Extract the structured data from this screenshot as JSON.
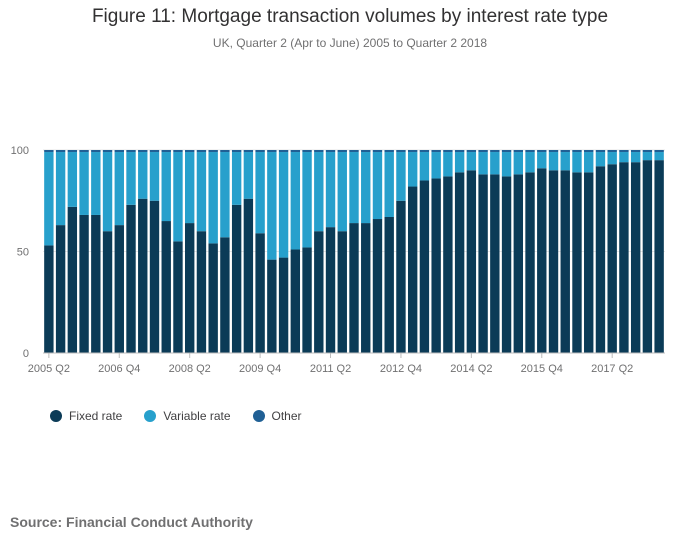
{
  "chart_data": {
    "type": "bar",
    "stacked": true,
    "title": "Figure 11: Mortgage transaction volumes by interest rate type",
    "subtitle": "UK, Quarter 2 (Apr to June) 2005 to Quarter 2 2018",
    "source": "Source: Financial Conduct Authority",
    "ylim": [
      0,
      100
    ],
    "yticks": [
      "0",
      "50",
      "100"
    ],
    "x_tick_labels": [
      "2005 Q2",
      "2006 Q4",
      "2008 Q2",
      "2009 Q4",
      "2011 Q2",
      "2012 Q4",
      "2014 Q2",
      "2015 Q4",
      "2017 Q2"
    ],
    "categories": [
      "2005 Q2",
      "2005 Q3",
      "2005 Q4",
      "2006 Q1",
      "2006 Q2",
      "2006 Q3",
      "2006 Q4",
      "2007 Q1",
      "2007 Q2",
      "2007 Q3",
      "2007 Q4",
      "2008 Q1",
      "2008 Q2",
      "2008 Q3",
      "2008 Q4",
      "2009 Q1",
      "2009 Q2",
      "2009 Q3",
      "2009 Q4",
      "2010 Q1",
      "2010 Q2",
      "2010 Q3",
      "2010 Q4",
      "2011 Q1",
      "2011 Q2",
      "2011 Q3",
      "2011 Q4",
      "2012 Q1",
      "2012 Q2",
      "2012 Q3",
      "2012 Q4",
      "2013 Q1",
      "2013 Q2",
      "2013 Q3",
      "2013 Q4",
      "2014 Q1",
      "2014 Q2",
      "2014 Q3",
      "2014 Q4",
      "2015 Q1",
      "2015 Q2",
      "2015 Q3",
      "2015 Q4",
      "2016 Q1",
      "2016 Q2",
      "2016 Q3",
      "2016 Q4",
      "2017 Q1",
      "2017 Q2",
      "2017 Q3",
      "2017 Q4",
      "2018 Q1",
      "2018 Q2"
    ],
    "series": [
      {
        "name": "Fixed rate",
        "color": "#0b3b57",
        "values": [
          53,
          63,
          72,
          68,
          68,
          60,
          63,
          73,
          76,
          75,
          65,
          55,
          64,
          60,
          54,
          57,
          73,
          76,
          59,
          46,
          47,
          51,
          52,
          60,
          62,
          60,
          64,
          64,
          66,
          67,
          75,
          82,
          85,
          86,
          87,
          89,
          90,
          88,
          88,
          87,
          88,
          89,
          91,
          90,
          90,
          89,
          89,
          92,
          93,
          94,
          94,
          95,
          95
        ]
      },
      {
        "name": "Variable rate",
        "color": "#27a0cc",
        "values": [
          46,
          36,
          27,
          31,
          31,
          39,
          36,
          26,
          23,
          24,
          34,
          44,
          35,
          39,
          45,
          42,
          26,
          23,
          40,
          53,
          52,
          48,
          47,
          39,
          37,
          39,
          35,
          35,
          33,
          32,
          24,
          17,
          14,
          13,
          12,
          10,
          9,
          11,
          11,
          12,
          11,
          10,
          8,
          9,
          9,
          10,
          10,
          7,
          6,
          5,
          5,
          4,
          4
        ]
      },
      {
        "name": "Other",
        "color": "#206095",
        "values": [
          1,
          1,
          1,
          1,
          1,
          1,
          1,
          1,
          1,
          1,
          1,
          1,
          1,
          1,
          1,
          1,
          1,
          1,
          1,
          1,
          1,
          1,
          1,
          1,
          1,
          1,
          1,
          1,
          1,
          1,
          1,
          1,
          1,
          1,
          1,
          1,
          1,
          1,
          1,
          1,
          1,
          1,
          1,
          1,
          1,
          1,
          1,
          1,
          1,
          1,
          1,
          1,
          1
        ]
      }
    ],
    "legend_position": "bottom-left",
    "grid": true
  }
}
